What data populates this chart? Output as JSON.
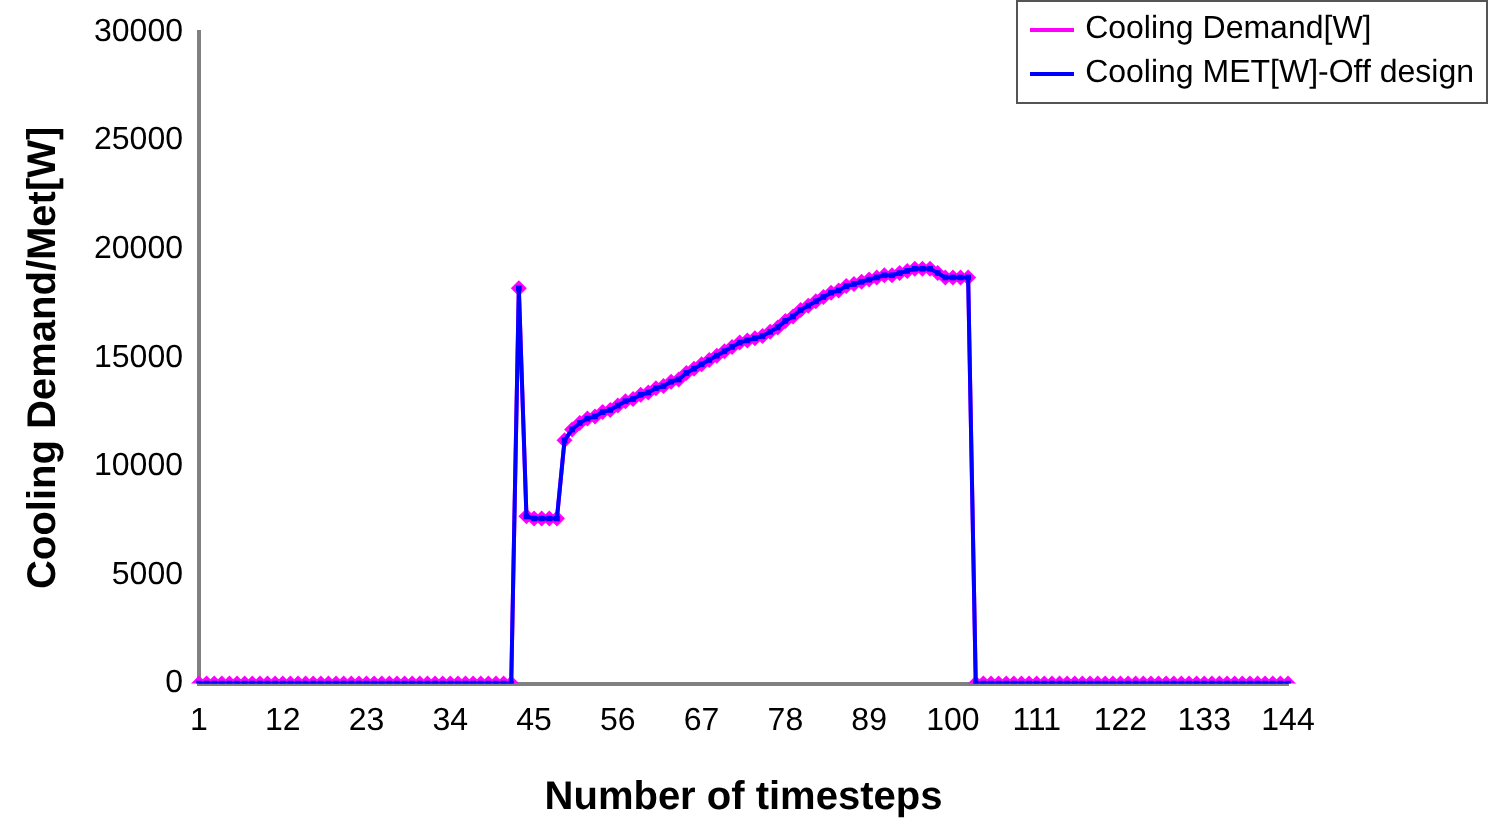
{
  "chart_data": {
    "type": "line",
    "xlabel": "Number of timesteps",
    "ylabel": "Cooling Demand/Met[W]",
    "categories": [
      "1",
      null,
      null,
      null,
      null,
      null,
      null,
      null,
      null,
      null,
      null,
      "12",
      null,
      null,
      null,
      null,
      null,
      null,
      null,
      null,
      null,
      null,
      "23",
      null,
      null,
      null,
      null,
      null,
      null,
      null,
      null,
      null,
      null,
      "34",
      null,
      null,
      null,
      null,
      null,
      null,
      null,
      null,
      null,
      null,
      "45",
      null,
      null,
      null,
      null,
      null,
      null,
      null,
      null,
      null,
      null,
      "56",
      null,
      null,
      null,
      null,
      null,
      null,
      null,
      null,
      null,
      null,
      "67",
      null,
      null,
      null,
      null,
      null,
      null,
      null,
      null,
      null,
      null,
      "78",
      null,
      null,
      null,
      null,
      null,
      null,
      null,
      null,
      null,
      null,
      "89",
      null,
      null,
      null,
      null,
      null,
      null,
      null,
      null,
      null,
      null,
      "100",
      null,
      null,
      null,
      null,
      null,
      null,
      null,
      null,
      null,
      null,
      "111",
      null,
      null,
      null,
      null,
      null,
      null,
      null,
      null,
      null,
      null,
      "122",
      null,
      null,
      null,
      null,
      null,
      null,
      null,
      null,
      null,
      null,
      "133",
      null,
      null,
      null,
      null,
      null,
      null,
      null,
      null,
      null,
      null,
      "144"
    ],
    "series": [
      {
        "name": "Cooling Demand[W]",
        "color": "#ff00ff",
        "marker": "diamond",
        "values": [
          0,
          0,
          0,
          0,
          0,
          0,
          0,
          0,
          0,
          0,
          0,
          0,
          0,
          0,
          0,
          0,
          0,
          0,
          0,
          0,
          0,
          0,
          0,
          0,
          0,
          0,
          0,
          0,
          0,
          0,
          0,
          0,
          0,
          0,
          0,
          0,
          0,
          0,
          0,
          0,
          0,
          0,
          18200,
          7700,
          7600,
          7600,
          7600,
          7600,
          11200,
          11700,
          12000,
          12200,
          12300,
          12500,
          12600,
          12800,
          13000,
          13100,
          13300,
          13400,
          13600,
          13700,
          13900,
          14000,
          14300,
          14500,
          14700,
          14900,
          15100,
          15300,
          15500,
          15700,
          15800,
          15900,
          16000,
          16200,
          16400,
          16700,
          16900,
          17200,
          17400,
          17600,
          17800,
          18000,
          18100,
          18300,
          18400,
          18500,
          18600,
          18700,
          18800,
          18800,
          18900,
          19000,
          19100,
          19100,
          19100,
          18900,
          18700,
          18700,
          18700,
          18700,
          0,
          0,
          0,
          0,
          0,
          0,
          0,
          0,
          0,
          0,
          0,
          0,
          0,
          0,
          0,
          0,
          0,
          0,
          0,
          0,
          0,
          0,
          0,
          0,
          0,
          0,
          0,
          0,
          0,
          0,
          0,
          0,
          0,
          0,
          0,
          0,
          0,
          0,
          0,
          0,
          0,
          0
        ]
      },
      {
        "name": "Cooling MET[W]-Off design",
        "color": "#0000ff",
        "marker": "square",
        "values": [
          0,
          0,
          0,
          0,
          0,
          0,
          0,
          0,
          0,
          0,
          0,
          0,
          0,
          0,
          0,
          0,
          0,
          0,
          0,
          0,
          0,
          0,
          0,
          0,
          0,
          0,
          0,
          0,
          0,
          0,
          0,
          0,
          0,
          0,
          0,
          0,
          0,
          0,
          0,
          0,
          0,
          0,
          18200,
          7700,
          7600,
          7600,
          7600,
          7600,
          11200,
          11700,
          12000,
          12200,
          12300,
          12500,
          12600,
          12800,
          13000,
          13100,
          13300,
          13400,
          13600,
          13700,
          13900,
          14000,
          14300,
          14500,
          14700,
          14900,
          15100,
          15300,
          15500,
          15700,
          15800,
          15900,
          16000,
          16200,
          16400,
          16700,
          16900,
          17200,
          17400,
          17600,
          17800,
          18000,
          18100,
          18300,
          18400,
          18500,
          18600,
          18700,
          18800,
          18800,
          18900,
          19000,
          19100,
          19100,
          19100,
          18900,
          18700,
          18700,
          18700,
          18700,
          0,
          0,
          0,
          0,
          0,
          0,
          0,
          0,
          0,
          0,
          0,
          0,
          0,
          0,
          0,
          0,
          0,
          0,
          0,
          0,
          0,
          0,
          0,
          0,
          0,
          0,
          0,
          0,
          0,
          0,
          0,
          0,
          0,
          0,
          0,
          0,
          0,
          0,
          0,
          0,
          0,
          0
        ]
      }
    ],
    "ylim": [
      0,
      30000
    ],
    "yticks": [
      0,
      5000,
      10000,
      15000,
      20000,
      25000,
      30000
    ],
    "grid": false,
    "legend": "top right"
  }
}
